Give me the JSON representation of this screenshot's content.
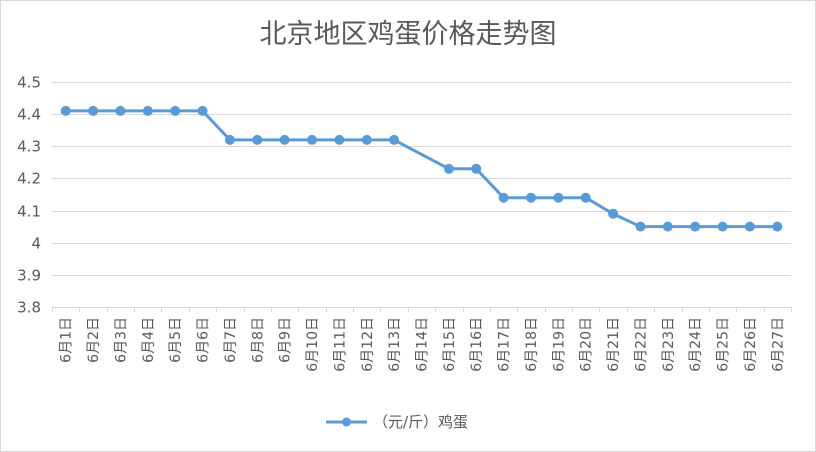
{
  "chart_data": {
    "type": "line",
    "title": "北京地区鸡蛋价格走势图",
    "categories": [
      "6月1日",
      "6月2日",
      "6月3日",
      "6月4日",
      "6月5日",
      "6月6日",
      "6月7日",
      "6月8日",
      "6月9日",
      "6月10日",
      "6月11日",
      "6月12日",
      "6月13日",
      "6月14日",
      "6月15日",
      "6月16日",
      "6月17日",
      "6月18日",
      "6月19日",
      "6月20日",
      "6月21日",
      "6月22日",
      "6月23日",
      "6月24日",
      "6月25日",
      "6月26日",
      "6月27日"
    ],
    "series": [
      {
        "name": "（元/斤）鸡蛋",
        "color": "#5B9BD5",
        "values": [
          4.41,
          4.41,
          4.41,
          4.41,
          4.41,
          4.41,
          4.32,
          4.32,
          4.32,
          4.32,
          4.32,
          4.32,
          4.32,
          null,
          4.23,
          4.23,
          4.14,
          4.14,
          4.14,
          4.14,
          4.09,
          4.05,
          4.05,
          4.05,
          4.05,
          4.05,
          4.05
        ]
      }
    ],
    "ylim": [
      3.8,
      4.5
    ],
    "yticks": [
      "3.8",
      "3.9",
      "4",
      "4.1",
      "4.2",
      "4.3",
      "4.4",
      "4.5"
    ],
    "grid": true,
    "legend": "bottom",
    "markers": "circle",
    "text_color": "#595959",
    "grid_color": "#D9D9D9"
  }
}
